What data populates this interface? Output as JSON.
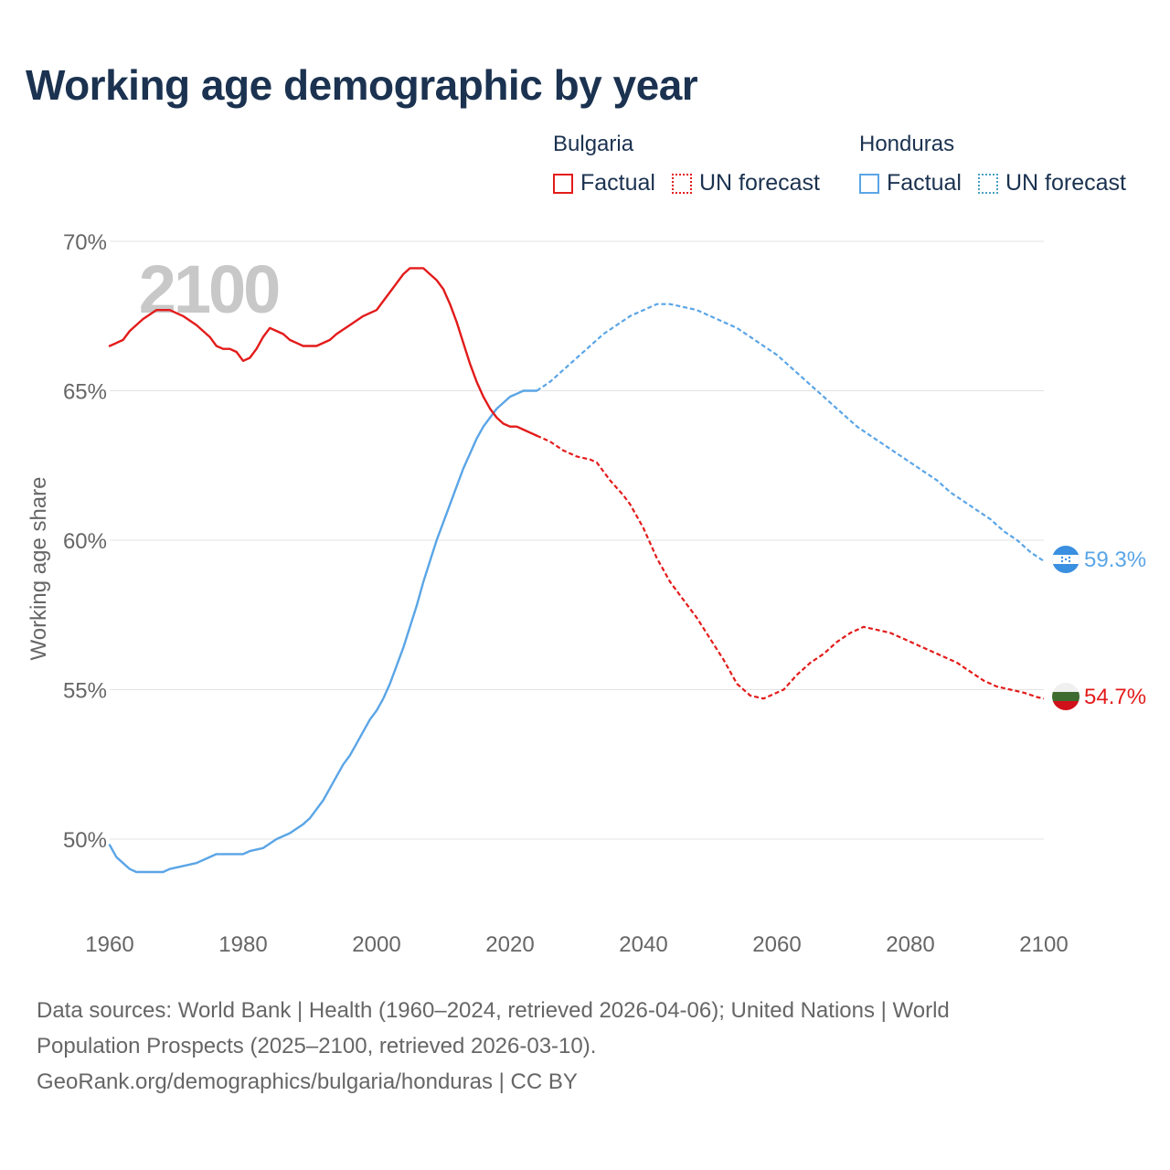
{
  "title": "Working age demographic by year",
  "legend": {
    "groups": [
      {
        "name": "Bulgaria",
        "factual_label": "Factual",
        "forecast_label": "UN forecast",
        "color": "#e31b1b"
      },
      {
        "name": "Honduras",
        "factual_label": "Factual",
        "forecast_label": "UN forecast",
        "color": "#5aa5e6"
      }
    ]
  },
  "year_watermark": "2100",
  "footer": {
    "line1": "Data sources: World Bank | Health (1960–2024, retrieved 2026-04-06); United Nations | World",
    "line2": "Population Prospects (2025–2100, retrieved 2026-03-10).",
    "line3": "GeoRank.org/demographics/bulgaria/honduras | CC BY"
  },
  "chart_data": {
    "type": "line",
    "title": "Working age demographic by year",
    "xlabel": "",
    "ylabel": "Working age share",
    "xlim": [
      1960,
      2100
    ],
    "ylim": [
      47.5,
      70
    ],
    "x_ticks": [
      1960,
      1980,
      2000,
      2020,
      2040,
      2060,
      2080,
      2100
    ],
    "x_tick_labels": [
      "1960",
      "1980",
      "2000",
      "2020",
      "2040",
      "2060",
      "2080",
      "2100"
    ],
    "y_ticks": [
      50,
      55,
      60,
      65,
      70
    ],
    "y_tick_labels": [
      "50%",
      "55%",
      "60%",
      "65%",
      "70%"
    ],
    "grid": true,
    "factual_end_year": 2024,
    "end_labels": [
      "59.3%",
      "54.7%"
    ],
    "series": [
      {
        "name": "Bulgaria",
        "color": "#e31b1b",
        "end_label": "54.7%",
        "points": [
          [
            1960,
            66.5
          ],
          [
            1962,
            66.7
          ],
          [
            1963,
            67.0
          ],
          [
            1965,
            67.4
          ],
          [
            1967,
            67.7
          ],
          [
            1969,
            67.7
          ],
          [
            1971,
            67.5
          ],
          [
            1973,
            67.2
          ],
          [
            1975,
            66.8
          ],
          [
            1976,
            66.5
          ],
          [
            1977,
            66.4
          ],
          [
            1978,
            66.4
          ],
          [
            1979,
            66.3
          ],
          [
            1980,
            66.0
          ],
          [
            1981,
            66.1
          ],
          [
            1982,
            66.4
          ],
          [
            1983,
            66.8
          ],
          [
            1984,
            67.1
          ],
          [
            1985,
            67.0
          ],
          [
            1986,
            66.9
          ],
          [
            1987,
            66.7
          ],
          [
            1988,
            66.6
          ],
          [
            1989,
            66.5
          ],
          [
            1991,
            66.5
          ],
          [
            1993,
            66.7
          ],
          [
            1994,
            66.9
          ],
          [
            1996,
            67.2
          ],
          [
            1998,
            67.5
          ],
          [
            2000,
            67.7
          ],
          [
            2001,
            68.0
          ],
          [
            2002,
            68.3
          ],
          [
            2003,
            68.6
          ],
          [
            2004,
            68.9
          ],
          [
            2005,
            69.1
          ],
          [
            2006,
            69.1
          ],
          [
            2007,
            69.1
          ],
          [
            2008,
            68.9
          ],
          [
            2009,
            68.7
          ],
          [
            2010,
            68.4
          ],
          [
            2011,
            67.9
          ],
          [
            2012,
            67.3
          ],
          [
            2013,
            66.6
          ],
          [
            2014,
            65.9
          ],
          [
            2015,
            65.3
          ],
          [
            2016,
            64.8
          ],
          [
            2017,
            64.4
          ],
          [
            2018,
            64.1
          ],
          [
            2019,
            63.9
          ],
          [
            2020,
            63.8
          ],
          [
            2021,
            63.8
          ],
          [
            2022,
            63.7
          ],
          [
            2023,
            63.6
          ],
          [
            2024,
            63.5
          ],
          [
            2026,
            63.3
          ],
          [
            2028,
            63.0
          ],
          [
            2030,
            62.8
          ],
          [
            2032,
            62.7
          ],
          [
            2033,
            62.6
          ],
          [
            2035,
            62.0
          ],
          [
            2037,
            61.5
          ],
          [
            2038,
            61.2
          ],
          [
            2040,
            60.4
          ],
          [
            2042,
            59.4
          ],
          [
            2044,
            58.6
          ],
          [
            2046,
            58.0
          ],
          [
            2048,
            57.4
          ],
          [
            2050,
            56.7
          ],
          [
            2052,
            56.0
          ],
          [
            2054,
            55.2
          ],
          [
            2056,
            54.8
          ],
          [
            2058,
            54.7
          ],
          [
            2059,
            54.8
          ],
          [
            2061,
            55.0
          ],
          [
            2063,
            55.5
          ],
          [
            2065,
            55.9
          ],
          [
            2067,
            56.2
          ],
          [
            2069,
            56.6
          ],
          [
            2071,
            56.9
          ],
          [
            2073,
            57.1
          ],
          [
            2075,
            57.0
          ],
          [
            2077,
            56.9
          ],
          [
            2079,
            56.7
          ],
          [
            2081,
            56.5
          ],
          [
            2083,
            56.3
          ],
          [
            2085,
            56.1
          ],
          [
            2087,
            55.9
          ],
          [
            2089,
            55.6
          ],
          [
            2091,
            55.3
          ],
          [
            2093,
            55.1
          ],
          [
            2095,
            55.0
          ],
          [
            2097,
            54.9
          ],
          [
            2099,
            54.75
          ],
          [
            2100,
            54.7
          ]
        ]
      },
      {
        "name": "Honduras",
        "color": "#5aa5e6",
        "end_label": "59.3%",
        "points": [
          [
            1960,
            49.8
          ],
          [
            1961,
            49.4
          ],
          [
            1962,
            49.2
          ],
          [
            1963,
            49.0
          ],
          [
            1964,
            48.9
          ],
          [
            1966,
            48.9
          ],
          [
            1968,
            48.9
          ],
          [
            1969,
            49.0
          ],
          [
            1971,
            49.1
          ],
          [
            1973,
            49.2
          ],
          [
            1975,
            49.4
          ],
          [
            1976,
            49.5
          ],
          [
            1978,
            49.5
          ],
          [
            1980,
            49.5
          ],
          [
            1981,
            49.6
          ],
          [
            1983,
            49.7
          ],
          [
            1985,
            50.0
          ],
          [
            1987,
            50.2
          ],
          [
            1989,
            50.5
          ],
          [
            1990,
            50.7
          ],
          [
            1991,
            51.0
          ],
          [
            1992,
            51.3
          ],
          [
            1993,
            51.7
          ],
          [
            1994,
            52.1
          ],
          [
            1995,
            52.5
          ],
          [
            1996,
            52.8
          ],
          [
            1997,
            53.2
          ],
          [
            1998,
            53.6
          ],
          [
            1999,
            54.0
          ],
          [
            2000,
            54.3
          ],
          [
            2001,
            54.7
          ],
          [
            2002,
            55.2
          ],
          [
            2003,
            55.8
          ],
          [
            2004,
            56.4
          ],
          [
            2005,
            57.1
          ],
          [
            2006,
            57.8
          ],
          [
            2007,
            58.6
          ],
          [
            2008,
            59.3
          ],
          [
            2009,
            60.0
          ],
          [
            2010,
            60.6
          ],
          [
            2011,
            61.2
          ],
          [
            2012,
            61.8
          ],
          [
            2013,
            62.4
          ],
          [
            2014,
            62.9
          ],
          [
            2015,
            63.4
          ],
          [
            2016,
            63.8
          ],
          [
            2017,
            64.1
          ],
          [
            2018,
            64.4
          ],
          [
            2019,
            64.6
          ],
          [
            2020,
            64.8
          ],
          [
            2021,
            64.9
          ],
          [
            2022,
            65.0
          ],
          [
            2024,
            65.0
          ],
          [
            2026,
            65.3
          ],
          [
            2028,
            65.7
          ],
          [
            2030,
            66.1
          ],
          [
            2032,
            66.5
          ],
          [
            2034,
            66.9
          ],
          [
            2036,
            67.2
          ],
          [
            2038,
            67.5
          ],
          [
            2040,
            67.7
          ],
          [
            2042,
            67.9
          ],
          [
            2044,
            67.9
          ],
          [
            2046,
            67.8
          ],
          [
            2048,
            67.7
          ],
          [
            2050,
            67.5
          ],
          [
            2052,
            67.3
          ],
          [
            2054,
            67.1
          ],
          [
            2056,
            66.8
          ],
          [
            2058,
            66.5
          ],
          [
            2060,
            66.2
          ],
          [
            2062,
            65.8
          ],
          [
            2064,
            65.4
          ],
          [
            2066,
            65.0
          ],
          [
            2068,
            64.6
          ],
          [
            2070,
            64.2
          ],
          [
            2072,
            63.8
          ],
          [
            2074,
            63.5
          ],
          [
            2076,
            63.2
          ],
          [
            2078,
            62.9
          ],
          [
            2080,
            62.6
          ],
          [
            2082,
            62.3
          ],
          [
            2084,
            62.0
          ],
          [
            2086,
            61.6
          ],
          [
            2088,
            61.3
          ],
          [
            2090,
            61.0
          ],
          [
            2092,
            60.7
          ],
          [
            2094,
            60.3
          ],
          [
            2096,
            60.0
          ],
          [
            2098,
            59.6
          ],
          [
            2100,
            59.3
          ]
        ]
      }
    ]
  }
}
